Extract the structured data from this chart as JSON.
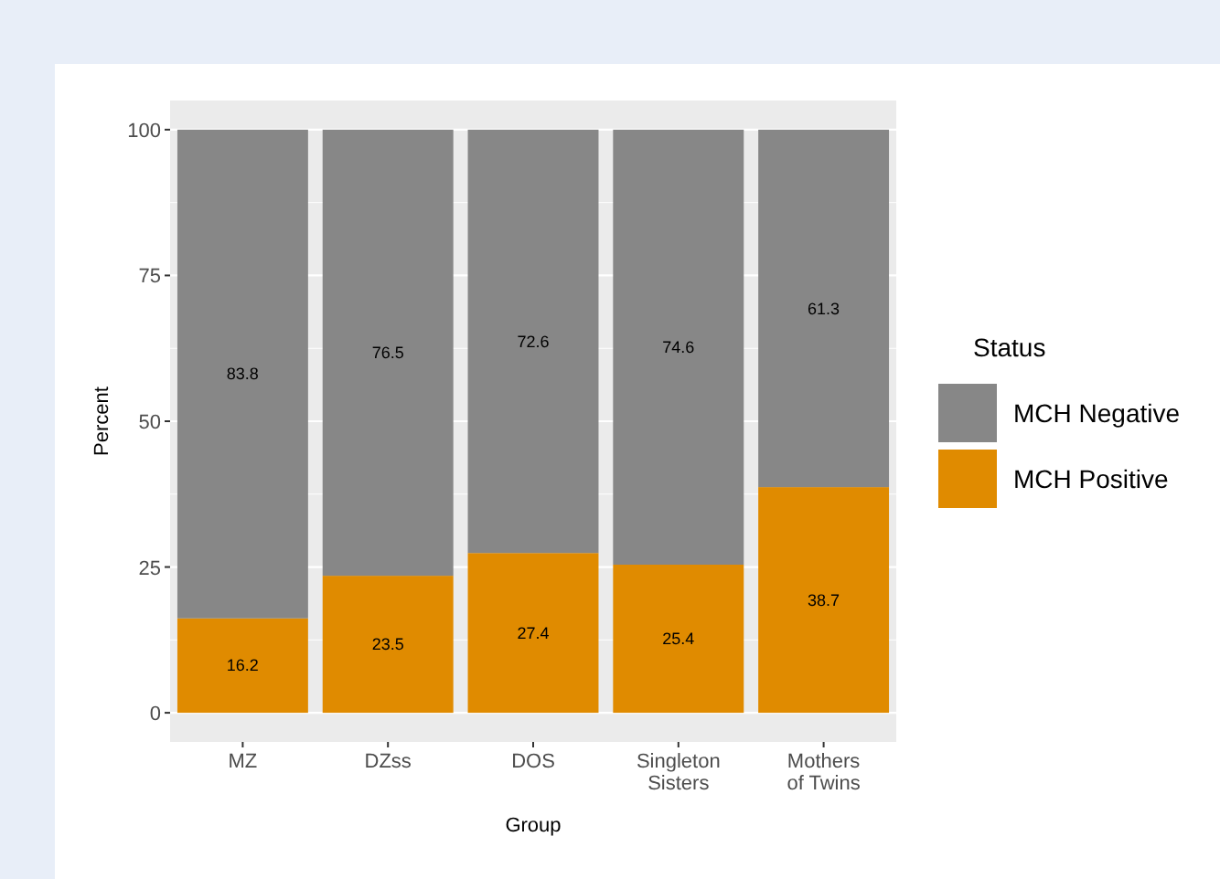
{
  "chart_data": {
    "type": "bar",
    "stacked": true,
    "xlabel": "Group",
    "ylabel": "Percent",
    "legend_title": "Status",
    "categories": [
      "MZ",
      "DZss",
      "DOS",
      "Singleton\nSisters",
      "Mothers\nof Twins"
    ],
    "series": [
      {
        "name": "MCH Positive",
        "color": "#e08b00",
        "values": [
          16.2,
          23.5,
          27.4,
          25.4,
          38.7
        ]
      },
      {
        "name": "MCH Negative",
        "color": "#878787",
        "values": [
          83.8,
          76.5,
          72.6,
          74.6,
          61.3
        ]
      }
    ],
    "ylim": [
      -5,
      105
    ],
    "yticks": [
      0,
      25,
      50,
      75,
      100
    ],
    "grid": "y",
    "legend": "right",
    "data_labels": true
  }
}
